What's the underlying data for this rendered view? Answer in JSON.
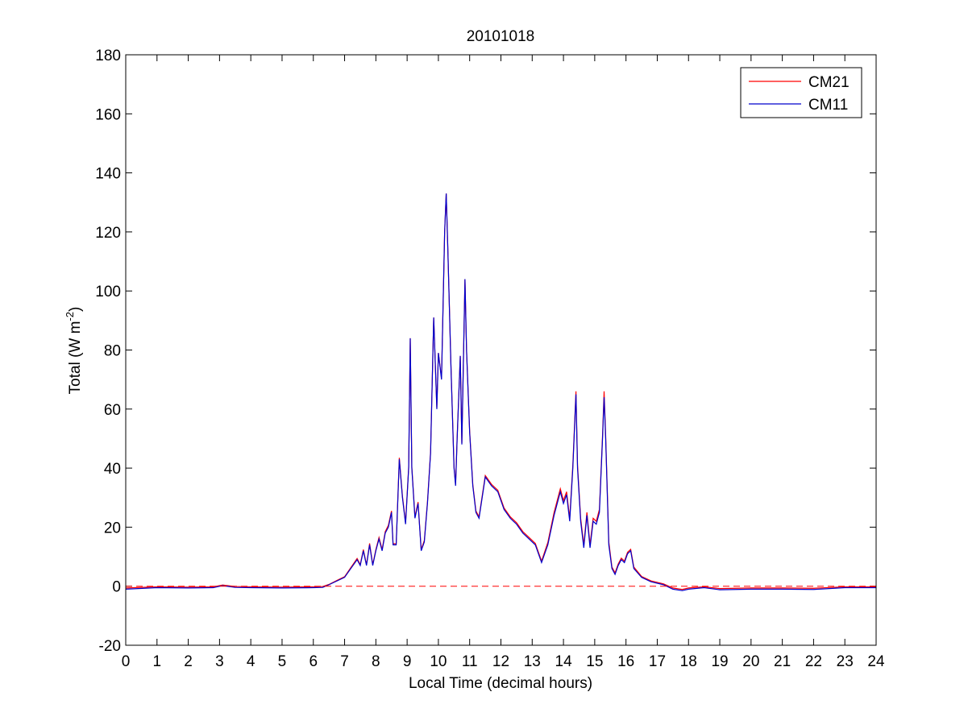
{
  "chart_data": {
    "type": "line",
    "title": "20101018",
    "xlabel": "Local Time (decimal hours)",
    "ylabel_parts": [
      "Total (W m",
      "-2",
      ")"
    ],
    "x": [
      0,
      1,
      2,
      2.8,
      3.1,
      3.5,
      4,
      5,
      6,
      6.3,
      6.5,
      6.8,
      7,
      7.2,
      7.4,
      7.5,
      7.6,
      7.7,
      7.8,
      7.9,
      8,
      8.1,
      8.2,
      8.3,
      8.4,
      8.5,
      8.55,
      8.65,
      8.75,
      8.85,
      8.95,
      9.05,
      9.1,
      9.15,
      9.25,
      9.35,
      9.45,
      9.55,
      9.65,
      9.75,
      9.85,
      9.95,
      10,
      10.1,
      10.2,
      10.25,
      10.3,
      10.4,
      10.5,
      10.55,
      10.6,
      10.7,
      10.75,
      10.85,
      10.9,
      11,
      11.1,
      11.2,
      11.3,
      11.5,
      11.7,
      11.9,
      12.1,
      12.3,
      12.5,
      12.7,
      12.9,
      13.1,
      13.3,
      13.5,
      13.7,
      13.9,
      14,
      14.1,
      14.2,
      14.3,
      14.4,
      14.45,
      14.55,
      14.65,
      14.75,
      14.85,
      14.95,
      15.05,
      15.15,
      15.25,
      15.3,
      15.35,
      15.45,
      15.55,
      15.65,
      15.75,
      15.85,
      15.95,
      16.05,
      16.15,
      16.25,
      16.5,
      16.8,
      17.2,
      17.5,
      17.8,
      18,
      18.5,
      19,
      20,
      21,
      22,
      23,
      24
    ],
    "series": [
      {
        "name": "CM21",
        "color": "#ff0000",
        "values": [
          -0.6,
          -0.2,
          -0.3,
          -0.2,
          0.4,
          -0.1,
          -0.2,
          -0.3,
          -0.2,
          -0.1,
          0.6,
          2.2,
          3.2,
          6.3,
          9.4,
          7.3,
          12.4,
          7.3,
          14.5,
          7.3,
          12.4,
          16.5,
          12.4,
          18.5,
          20.6,
          25.5,
          14.4,
          14.4,
          43.5,
          30.5,
          21.5,
          40.5,
          84,
          40.5,
          23.5,
          28.5,
          12.4,
          15.5,
          28.5,
          45.5,
          91,
          60.5,
          79,
          70.5,
          120,
          133,
          115,
          75.5,
          40.5,
          34.5,
          50.5,
          78,
          48.5,
          104,
          80,
          52.5,
          34.5,
          25.5,
          23.5,
          37.5,
          34.5,
          32.5,
          26.5,
          23.5,
          21.5,
          18.5,
          16.5,
          14.5,
          8.5,
          14.8,
          25,
          33,
          29,
          32,
          23,
          41,
          66,
          41,
          23,
          14,
          25,
          14,
          23,
          22,
          26,
          51,
          66,
          51,
          15,
          6.5,
          4.5,
          7.5,
          9.5,
          8.5,
          11.5,
          12.5,
          6.5,
          3.3,
          1.8,
          0.8,
          -0.6,
          -1.1,
          -0.6,
          -0.2,
          -0.8,
          -0.6,
          -0.6,
          -0.7,
          -0.2,
          -0.2
        ]
      },
      {
        "name": "CM11",
        "color": "#0000cc",
        "values": [
          -1,
          -0.5,
          -0.6,
          -0.5,
          0.2,
          -0.4,
          -0.5,
          -0.6,
          -0.5,
          -0.4,
          0.5,
          2,
          3,
          6,
          9,
          7,
          12,
          7,
          14,
          7,
          12,
          16,
          12,
          18,
          20,
          25,
          14,
          14,
          43,
          30,
          21,
          40,
          84,
          40,
          23,
          28,
          12,
          15,
          28,
          45,
          91,
          60,
          79,
          70,
          120,
          133,
          115,
          75,
          40,
          34,
          50,
          78,
          48,
          104,
          80,
          52,
          34,
          25,
          23,
          37,
          34,
          32,
          26,
          23,
          21,
          18,
          16,
          14,
          8,
          14,
          24,
          32,
          28,
          31,
          22,
          40,
          65,
          40,
          22,
          13,
          24,
          13,
          22,
          21,
          25,
          50,
          64,
          50,
          14,
          6,
          4,
          7,
          9,
          8,
          11,
          12,
          6,
          3,
          1.5,
          0.5,
          -1,
          -1.5,
          -1,
          -0.5,
          -1.2,
          -1,
          -1,
          -1.1,
          -0.5,
          -0.5
        ]
      }
    ],
    "reference_line": {
      "y": 0,
      "color": "#ff0000",
      "style": "dashed"
    },
    "xlim": [
      0,
      24
    ],
    "xticks": [
      0,
      1,
      2,
      3,
      4,
      5,
      6,
      7,
      8,
      9,
      10,
      11,
      12,
      13,
      14,
      15,
      16,
      17,
      18,
      19,
      20,
      21,
      22,
      23,
      24
    ],
    "ylim": [
      -20,
      180
    ],
    "yticks": [
      -20,
      0,
      20,
      40,
      60,
      80,
      100,
      120,
      140,
      160,
      180
    ],
    "legend": "upper right",
    "grid": false
  }
}
